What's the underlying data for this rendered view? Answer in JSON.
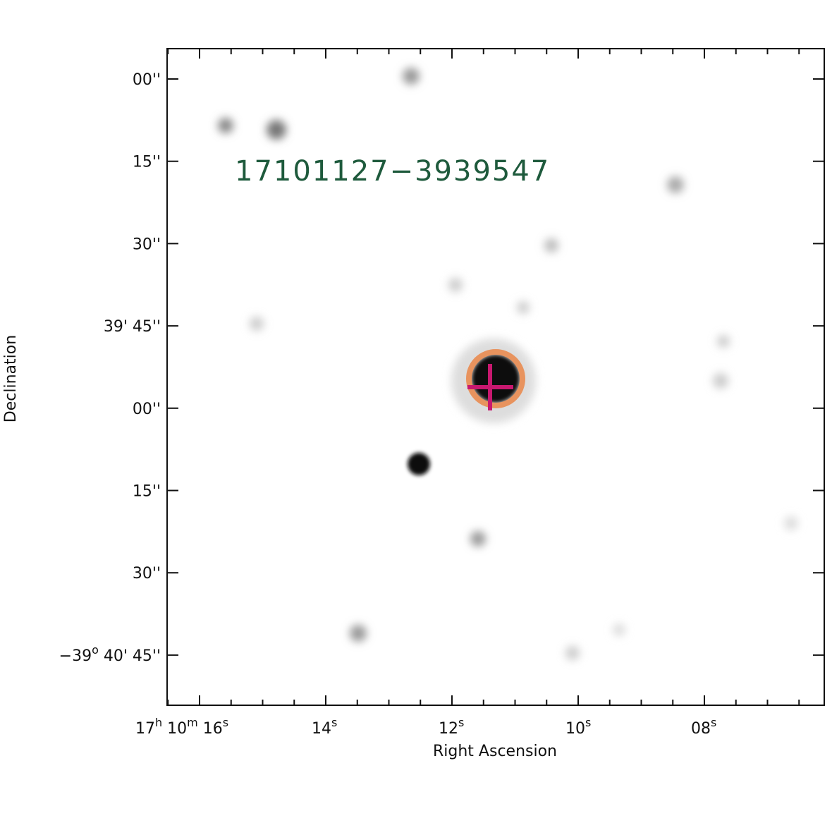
{
  "label": "17101127−3939547",
  "x_axis": {
    "title": "Right Ascension",
    "ticks": [
      [
        "17",
        "h",
        " 10",
        "m",
        " 16",
        "s"
      ],
      [
        "14",
        "s"
      ],
      [
        "12",
        "s"
      ],
      [
        "10",
        "s"
      ],
      [
        "08",
        "s"
      ]
    ]
  },
  "y_axis": {
    "title": "Declination",
    "ticks": [
      [
        "00''"
      ],
      [
        "15''"
      ],
      [
        "30''"
      ],
      [
        "39' 45''"
      ],
      [
        "00''"
      ],
      [
        "15''"
      ],
      [
        "30''"
      ],
      [
        "−39",
        "o",
        " 40' 45''"
      ]
    ]
  }
}
